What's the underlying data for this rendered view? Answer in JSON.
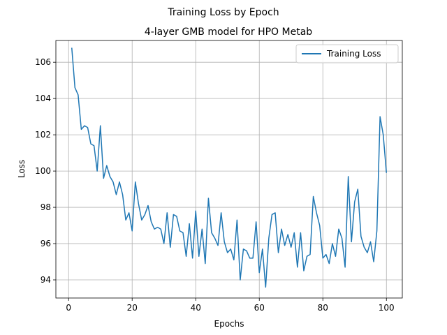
{
  "chart_data": {
    "type": "line",
    "suptitle": "Training Loss by Epoch",
    "title": "4-layer GMB model for HPO Metab",
    "xlabel": "Epochs",
    "ylabel": "Loss",
    "xlim": [
      -4,
      105
    ],
    "ylim": [
      93.0,
      107.2
    ],
    "xticks": [
      0,
      20,
      40,
      60,
      80,
      100
    ],
    "yticks": [
      94,
      96,
      98,
      100,
      102,
      104,
      106
    ],
    "grid": true,
    "legend_position": "top-right",
    "line_color": "#1f77b4",
    "series": [
      {
        "name": "Training Loss",
        "x": [
          1,
          2,
          3,
          4,
          5,
          6,
          7,
          8,
          9,
          10,
          11,
          12,
          13,
          14,
          15,
          16,
          17,
          18,
          19,
          20,
          21,
          22,
          23,
          24,
          25,
          26,
          27,
          28,
          29,
          30,
          31,
          32,
          33,
          34,
          35,
          36,
          37,
          38,
          39,
          40,
          41,
          42,
          43,
          44,
          45,
          46,
          47,
          48,
          49,
          50,
          51,
          52,
          53,
          54,
          55,
          56,
          57,
          58,
          59,
          60,
          61,
          62,
          63,
          64,
          65,
          66,
          67,
          68,
          69,
          70,
          71,
          72,
          73,
          74,
          75,
          76,
          77,
          78,
          79,
          80,
          81,
          82,
          83,
          84,
          85,
          86,
          87,
          88,
          89,
          90,
          91,
          92,
          93,
          94,
          95,
          96,
          97,
          98,
          99,
          100
        ],
        "y": [
          106.8,
          104.6,
          104.2,
          102.3,
          102.5,
          102.4,
          101.5,
          101.4,
          100.0,
          102.5,
          99.6,
          100.3,
          99.7,
          99.4,
          98.7,
          99.4,
          98.7,
          97.3,
          97.7,
          96.7,
          99.4,
          98.2,
          97.3,
          97.6,
          98.1,
          97.2,
          96.8,
          96.9,
          96.8,
          96.0,
          97.7,
          95.8,
          97.6,
          97.5,
          96.7,
          96.6,
          95.3,
          97.1,
          95.2,
          97.8,
          95.3,
          96.8,
          94.9,
          98.5,
          96.6,
          96.3,
          95.9,
          97.7,
          96.1,
          95.5,
          95.7,
          95.1,
          97.3,
          94.0,
          95.7,
          95.6,
          95.2,
          95.2,
          97.2,
          94.4,
          95.7,
          93.6,
          96.3,
          97.6,
          97.7,
          95.5,
          96.8,
          95.9,
          96.5,
          95.8,
          96.6,
          94.7,
          96.6,
          94.5,
          95.3,
          95.4,
          98.6,
          97.7,
          97.0,
          95.2,
          95.4,
          94.9,
          96.0,
          95.3,
          96.8,
          96.3,
          94.7,
          99.7,
          96.1,
          98.3,
          99.0,
          96.4,
          95.8,
          95.5,
          96.1,
          95.0,
          96.7,
          103.0,
          102.0,
          99.9
        ]
      }
    ]
  }
}
